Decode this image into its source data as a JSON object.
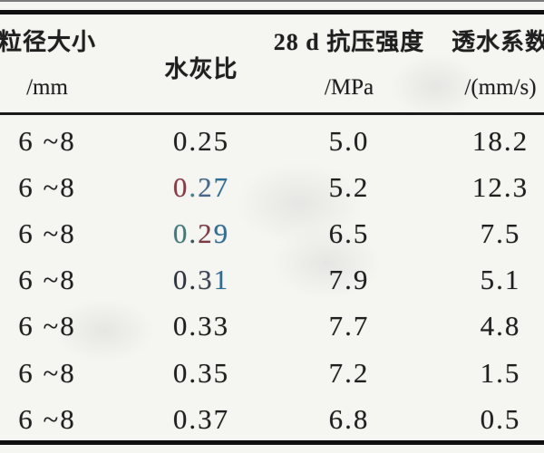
{
  "table": {
    "columns": [
      {
        "key": "size",
        "header": "粒径大小",
        "unit": "/mm"
      },
      {
        "key": "wc",
        "header": "水灰比",
        "unit": ""
      },
      {
        "key": "strength",
        "header": "28 d 抗压强度",
        "unit": "/MPa"
      },
      {
        "key": "perm",
        "header": "透水系数",
        "unit": "/(mm/s)"
      }
    ],
    "rows": [
      {
        "size": "6 ~8",
        "wc": "0.25",
        "strength": "5.0",
        "perm": "18.2"
      },
      {
        "size": "6 ~8",
        "wc": "0.27",
        "strength": "5.2",
        "perm": "12.3",
        "wc_segments": [
          {
            "t": "0",
            "c": "#8a3a45"
          },
          {
            "t": ".",
            "c": "#44808f"
          },
          {
            "t": "2",
            "c": "#45688a"
          },
          {
            "t": "7",
            "c": "#2d6f97"
          }
        ]
      },
      {
        "size": "6 ~8",
        "wc": "0.29",
        "strength": "6.5",
        "perm": "7.5",
        "wc_segments": [
          {
            "t": "0",
            "c": "#41797c"
          },
          {
            "t": ".",
            "c": "#35565e"
          },
          {
            "t": "2",
            "c": "#7e3a43"
          },
          {
            "t": "9",
            "c": "#2d6f97"
          }
        ]
      },
      {
        "size": "6 ~8",
        "wc": "0.31",
        "strength": "7.9",
        "perm": "5.1",
        "wc_segments": [
          {
            "t": "0",
            "c": "#2d3440"
          },
          {
            "t": ".",
            "c": "#2d3440"
          },
          {
            "t": "3",
            "c": "#3c4653"
          },
          {
            "t": "1",
            "c": "#2a6e97"
          }
        ]
      },
      {
        "size": "6 ~8",
        "wc": "0.33",
        "strength": "7.7",
        "perm": "4.8"
      },
      {
        "size": "6 ~8",
        "wc": "0.35",
        "strength": "7.2",
        "perm": "1.5"
      },
      {
        "size": "6 ~8",
        "wc": "0.37",
        "strength": "6.8",
        "perm": "0.5"
      }
    ]
  },
  "colors": {
    "text": "#1f1f1f",
    "rule_heavy": "#101010",
    "rule_light": "#7a7a7a",
    "background": "#f5f5f2",
    "aberration_blue": "#2d6f97",
    "aberration_red": "#8a3a45",
    "aberration_teal": "#41797c"
  }
}
